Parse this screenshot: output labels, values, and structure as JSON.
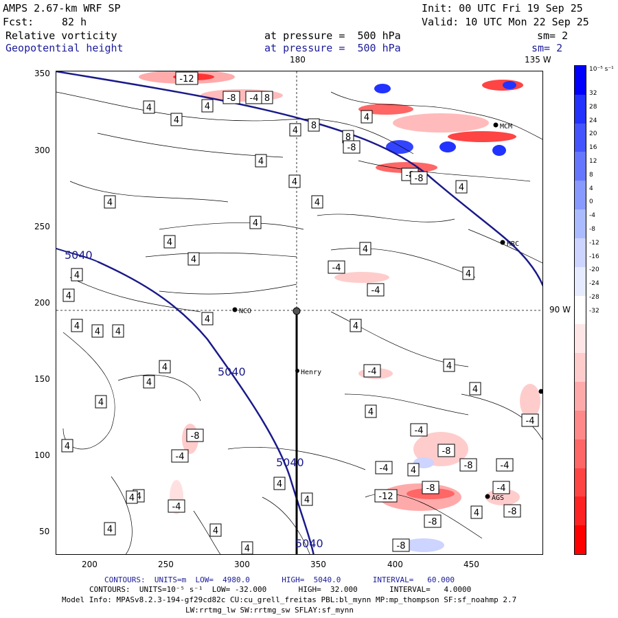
{
  "header": {
    "model": "AMPS 2.67-km WRF SP",
    "init": "Init: 00 UTC Fri 19 Sep 25",
    "fcst_label": "Fcst:",
    "fcst_value": "82 h",
    "valid": "Valid: 10 UTC Mon 22 Sep 25",
    "field1": "Relative vorticity",
    "field1_level": "at pressure =  500 hPa",
    "field1_sm": "sm= 2",
    "field2": "Geopotential height",
    "field2_level": "at pressure =  500 hPa",
    "field2_sm": "sm= 2"
  },
  "map": {
    "lon_labels": [
      "180",
      "135 W",
      "90 W"
    ],
    "x_ticks": [
      "200",
      "250",
      "300",
      "350",
      "400",
      "450"
    ],
    "y_ticks": [
      "350",
      "300",
      "250",
      "200",
      "150",
      "100",
      "50"
    ],
    "stations": [
      "NCO",
      "Henry",
      "HRC",
      "AGS",
      "MCM"
    ],
    "height_contour_label": "5040",
    "vort_labels": [
      "4",
      "-4",
      "8",
      "-8",
      "-12"
    ]
  },
  "colorbar": {
    "unit": "10⁻⁵ s⁻¹",
    "labels": [
      "32",
      "28",
      "24",
      "20",
      "16",
      "12",
      "8",
      "4",
      "0",
      "-4",
      "-8",
      "-12",
      "-16",
      "-20",
      "-24",
      "-28",
      "-32"
    ],
    "colors": [
      "#0000ff",
      "#2233ff",
      "#4455ff",
      "#6677ff",
      "#8899ff",
      "#aabbff",
      "#ccd4ff",
      "#e6ebff",
      "#ffffff",
      "#ffe6e6",
      "#ffcccc",
      "#ffaaaa",
      "#ff8888",
      "#ff6666",
      "#ff4444",
      "#ff2222",
      "#ff0000"
    ]
  },
  "footer": {
    "contours1_label": "CONTOURS:  UNITS=m  LOW=  4980.0       HIGH=  5040.0       INTERVAL=   60.000",
    "contours2_label": "CONTOURS:  UNITS=10⁻⁵ s⁻¹  LOW= -32.000       HIGH=  32.000       INTERVAL=   4.0000",
    "model_info": "Model Info: MPASv8.2.3-194-gf29cd82c CU:cu_grell_freitas PBL:bl_mynn MP:mp_thompson SF:sf_noahmp 2.7",
    "model_info2": "LW:rrtmg_lw SW:rrtmg_sw SFLAY:sf_mynn"
  }
}
